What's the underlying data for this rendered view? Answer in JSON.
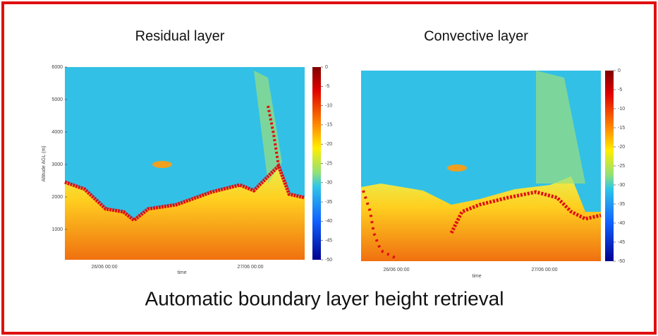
{
  "caption": "Automatic boundary layer height retrieval",
  "panels": [
    {
      "title": "Residual layer",
      "ylabel": "Altitude AGL (m)",
      "xlabel": "time",
      "ylim": [
        0,
        6000
      ],
      "yticks": [
        1000,
        2000,
        3000,
        4000,
        5000,
        6000
      ],
      "xticks": [
        "26/06 00:00",
        "27/06 00:00"
      ],
      "clim": [
        -50,
        0
      ],
      "colorbar_ticks": [
        0,
        -5,
        -10,
        -15,
        -20,
        -25,
        -30,
        -35,
        -40,
        -45,
        -50
      ]
    },
    {
      "title": "Convective layer",
      "xlabel": "time",
      "xticks": [
        "26/06 00:00",
        "27/06 00:00"
      ],
      "clim": [
        -50,
        0
      ],
      "colorbar_ticks": [
        0,
        -5,
        -10,
        -15,
        -20,
        -25,
        -30,
        -35,
        -40,
        -45,
        -50
      ]
    }
  ]
}
